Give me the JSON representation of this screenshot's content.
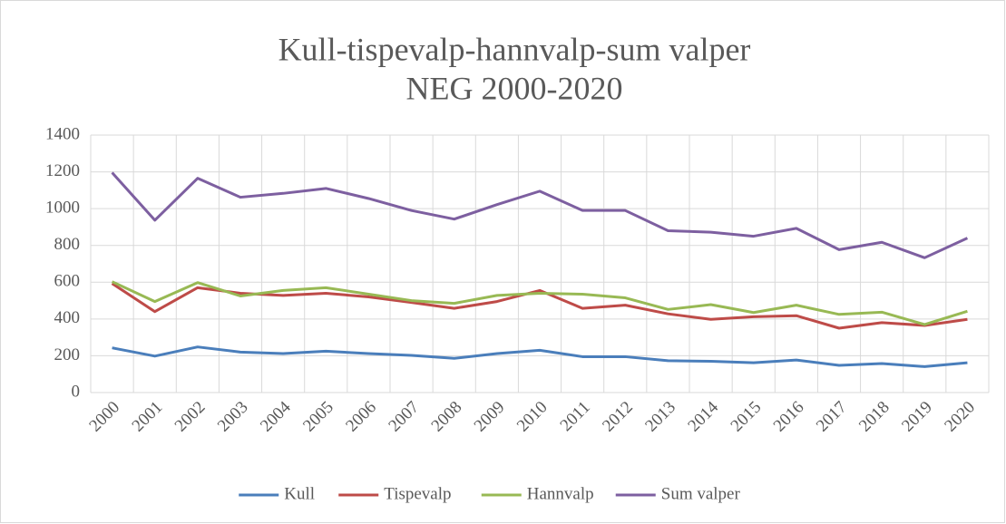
{
  "chart_data": {
    "type": "line",
    "title": "Kull-tispevalp-hannvalp-sum valper",
    "subtitle": "NEG 2000-2020",
    "categories": [
      "2000",
      "2001",
      "2002",
      "2003",
      "2004",
      "2005",
      "2006",
      "2007",
      "2008",
      "2009",
      "2010",
      "2011",
      "2012",
      "2013",
      "2014",
      "2015",
      "2016",
      "2017",
      "2018",
      "2019",
      "2020"
    ],
    "series": [
      {
        "name": "Kull",
        "color": "#4a7ebb",
        "values": [
          243,
          198,
          248,
          220,
          212,
          225,
          212,
          202,
          186,
          212,
          230,
          195,
          195,
          173,
          170,
          162,
          177,
          148,
          158,
          141,
          162
        ]
      },
      {
        "name": "Tispevalp",
        "color": "#be4b48",
        "values": [
          593,
          440,
          570,
          540,
          528,
          540,
          520,
          490,
          458,
          495,
          555,
          458,
          475,
          428,
          398,
          412,
          418,
          350,
          380,
          365,
          398
        ]
      },
      {
        "name": "Hannvalp",
        "color": "#98b954",
        "values": [
          603,
          495,
          598,
          525,
          555,
          570,
          535,
          500,
          485,
          528,
          540,
          535,
          515,
          452,
          478,
          435,
          475,
          425,
          437,
          370,
          442
        ]
      },
      {
        "name": "Sum valper",
        "color": "#7d5fa0",
        "values": [
          1196,
          937,
          1165,
          1062,
          1083,
          1110,
          1055,
          990,
          943,
          1022,
          1095,
          990,
          990,
          880,
          872,
          850,
          893,
          777,
          817,
          733,
          840
        ]
      }
    ],
    "ylim": [
      0,
      1400
    ],
    "yticks": [
      0,
      200,
      400,
      600,
      800,
      1000,
      1200,
      1400
    ],
    "grid": true,
    "legend": "bottom"
  }
}
